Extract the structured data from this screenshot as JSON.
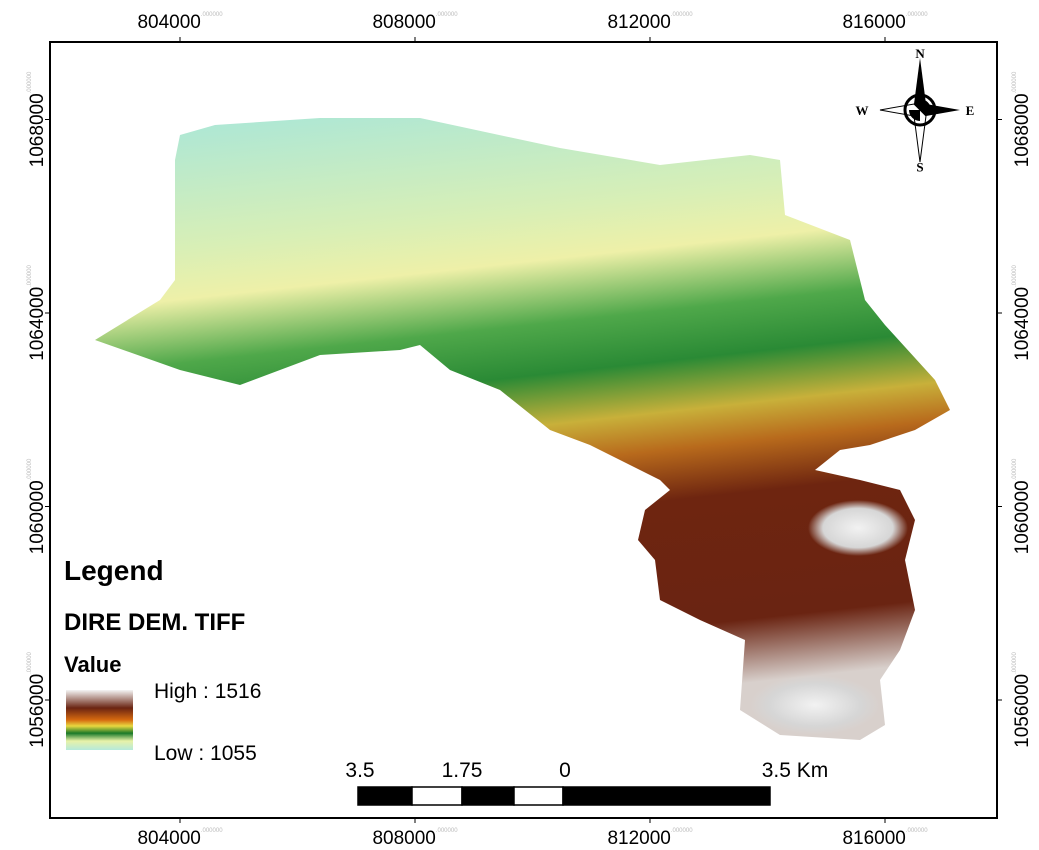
{
  "map": {
    "x_ticks": [
      804000,
      808000,
      812000,
      816000
    ],
    "y_ticks": [
      1056000,
      1060000,
      1064000,
      1068000
    ],
    "tick_decimals": ".000000",
    "compass": {
      "north": "N",
      "south": "S",
      "east": "E",
      "west": "W"
    },
    "legend": {
      "title": "Legend",
      "layer": "DIRE DEM. TIFF",
      "field": "Value",
      "high": "High : 1516",
      "low": "Low : 1055"
    },
    "scale_bar": {
      "labels": [
        "3.5",
        "1.75",
        "0",
        "3.5 Km"
      ]
    }
  }
}
